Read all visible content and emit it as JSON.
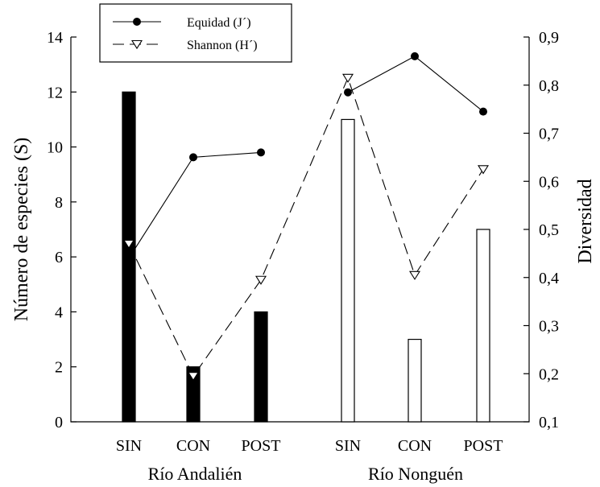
{
  "chart_data": {
    "type": "bar",
    "categories": [
      "SIN",
      "CON",
      "POST",
      "SIN",
      "CON",
      "POST"
    ],
    "groups": [
      {
        "label": "Río Andalién",
        "indices": [
          0,
          1,
          2
        ]
      },
      {
        "label": "Río Nonguén",
        "indices": [
          3,
          4,
          5
        ]
      }
    ],
    "bars": {
      "axis": "left",
      "values": [
        12,
        2,
        4,
        11,
        3,
        7
      ],
      "fill": [
        "#000000",
        "#000000",
        "#000000",
        "#ffffff",
        "#ffffff",
        "#ffffff"
      ]
    },
    "series": [
      {
        "name": "Equidad (J´)",
        "axis": "right",
        "style": "solid",
        "marker": "filled-circle",
        "segments": [
          [
            0,
            1,
            2
          ],
          [
            3,
            4,
            5
          ]
        ],
        "values": [
          0.44,
          0.65,
          0.66,
          0.785,
          0.86,
          0.745
        ]
      },
      {
        "name": "Shannon (H´)",
        "axis": "right",
        "style": "dashed",
        "marker": "open-triangle-down",
        "segments": [
          [
            0,
            1,
            2,
            3,
            4,
            5
          ]
        ],
        "values": [
          0.47,
          0.195,
          0.395,
          0.815,
          0.405,
          0.625
        ]
      }
    ],
    "ylabel": "Número de especies (S)",
    "ylim": [
      0,
      14
    ],
    "yticks": [
      0,
      2,
      4,
      6,
      8,
      10,
      12,
      14
    ],
    "y2label": "Diversidad",
    "y2lim": [
      0.1,
      0.9
    ],
    "y2ticks": [
      "0,1",
      "0,2",
      "0,3",
      "0,4",
      "0,5",
      "0,6",
      "0,7",
      "0,8",
      "0,9"
    ],
    "legend_position": "top-left",
    "grid": false
  }
}
